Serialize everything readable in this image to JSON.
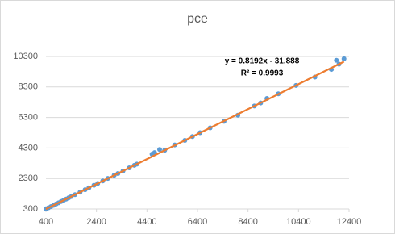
{
  "chart_data": {
    "type": "scatter",
    "title": "pce",
    "x": [
      400,
      500,
      600,
      700,
      800,
      900,
      1000,
      1100,
      1200,
      1300,
      1400,
      1550,
      1750,
      1950,
      2100,
      2300,
      2450,
      2650,
      2850,
      3100,
      3250,
      3450,
      3700,
      3900,
      4000,
      4600,
      4700,
      4900,
      5100,
      5500,
      5900,
      6200,
      6500,
      6900,
      7450,
      8000,
      8650,
      8900,
      9150,
      9600,
      10300,
      11050,
      11700,
      11900,
      12000,
      12200
    ],
    "values": [
      310,
      378,
      460,
      541,
      623,
      705,
      787,
      869,
      951,
      1033,
      1115,
      1238,
      1402,
      1565,
      1688,
      1852,
      1975,
      2139,
      2303,
      2508,
      2630,
      2794,
      2999,
      3163,
      3245,
      3900,
      4000,
      4200,
      4150,
      4500,
      4800,
      5050,
      5300,
      5620,
      6050,
      6450,
      7050,
      7250,
      7550,
      7850,
      8400,
      8950,
      9450,
      10050,
      9800,
      10150
    ],
    "color": "#5b9bd5",
    "xlim": [
      400,
      12400
    ],
    "xticks": [
      400,
      2400,
      4400,
      6400,
      8400,
      10400,
      12400
    ],
    "ylim": [
      300,
      10300
    ],
    "yticks": [
      300,
      2300,
      4300,
      6300,
      8300,
      10300
    ],
    "grid": true,
    "trendline": {
      "slope": 0.8192,
      "intercept": -31.888,
      "color": "#ed7d31",
      "equation": "y = 0.8192x - 31.888",
      "r_squared": "R² = 0.9993"
    }
  }
}
